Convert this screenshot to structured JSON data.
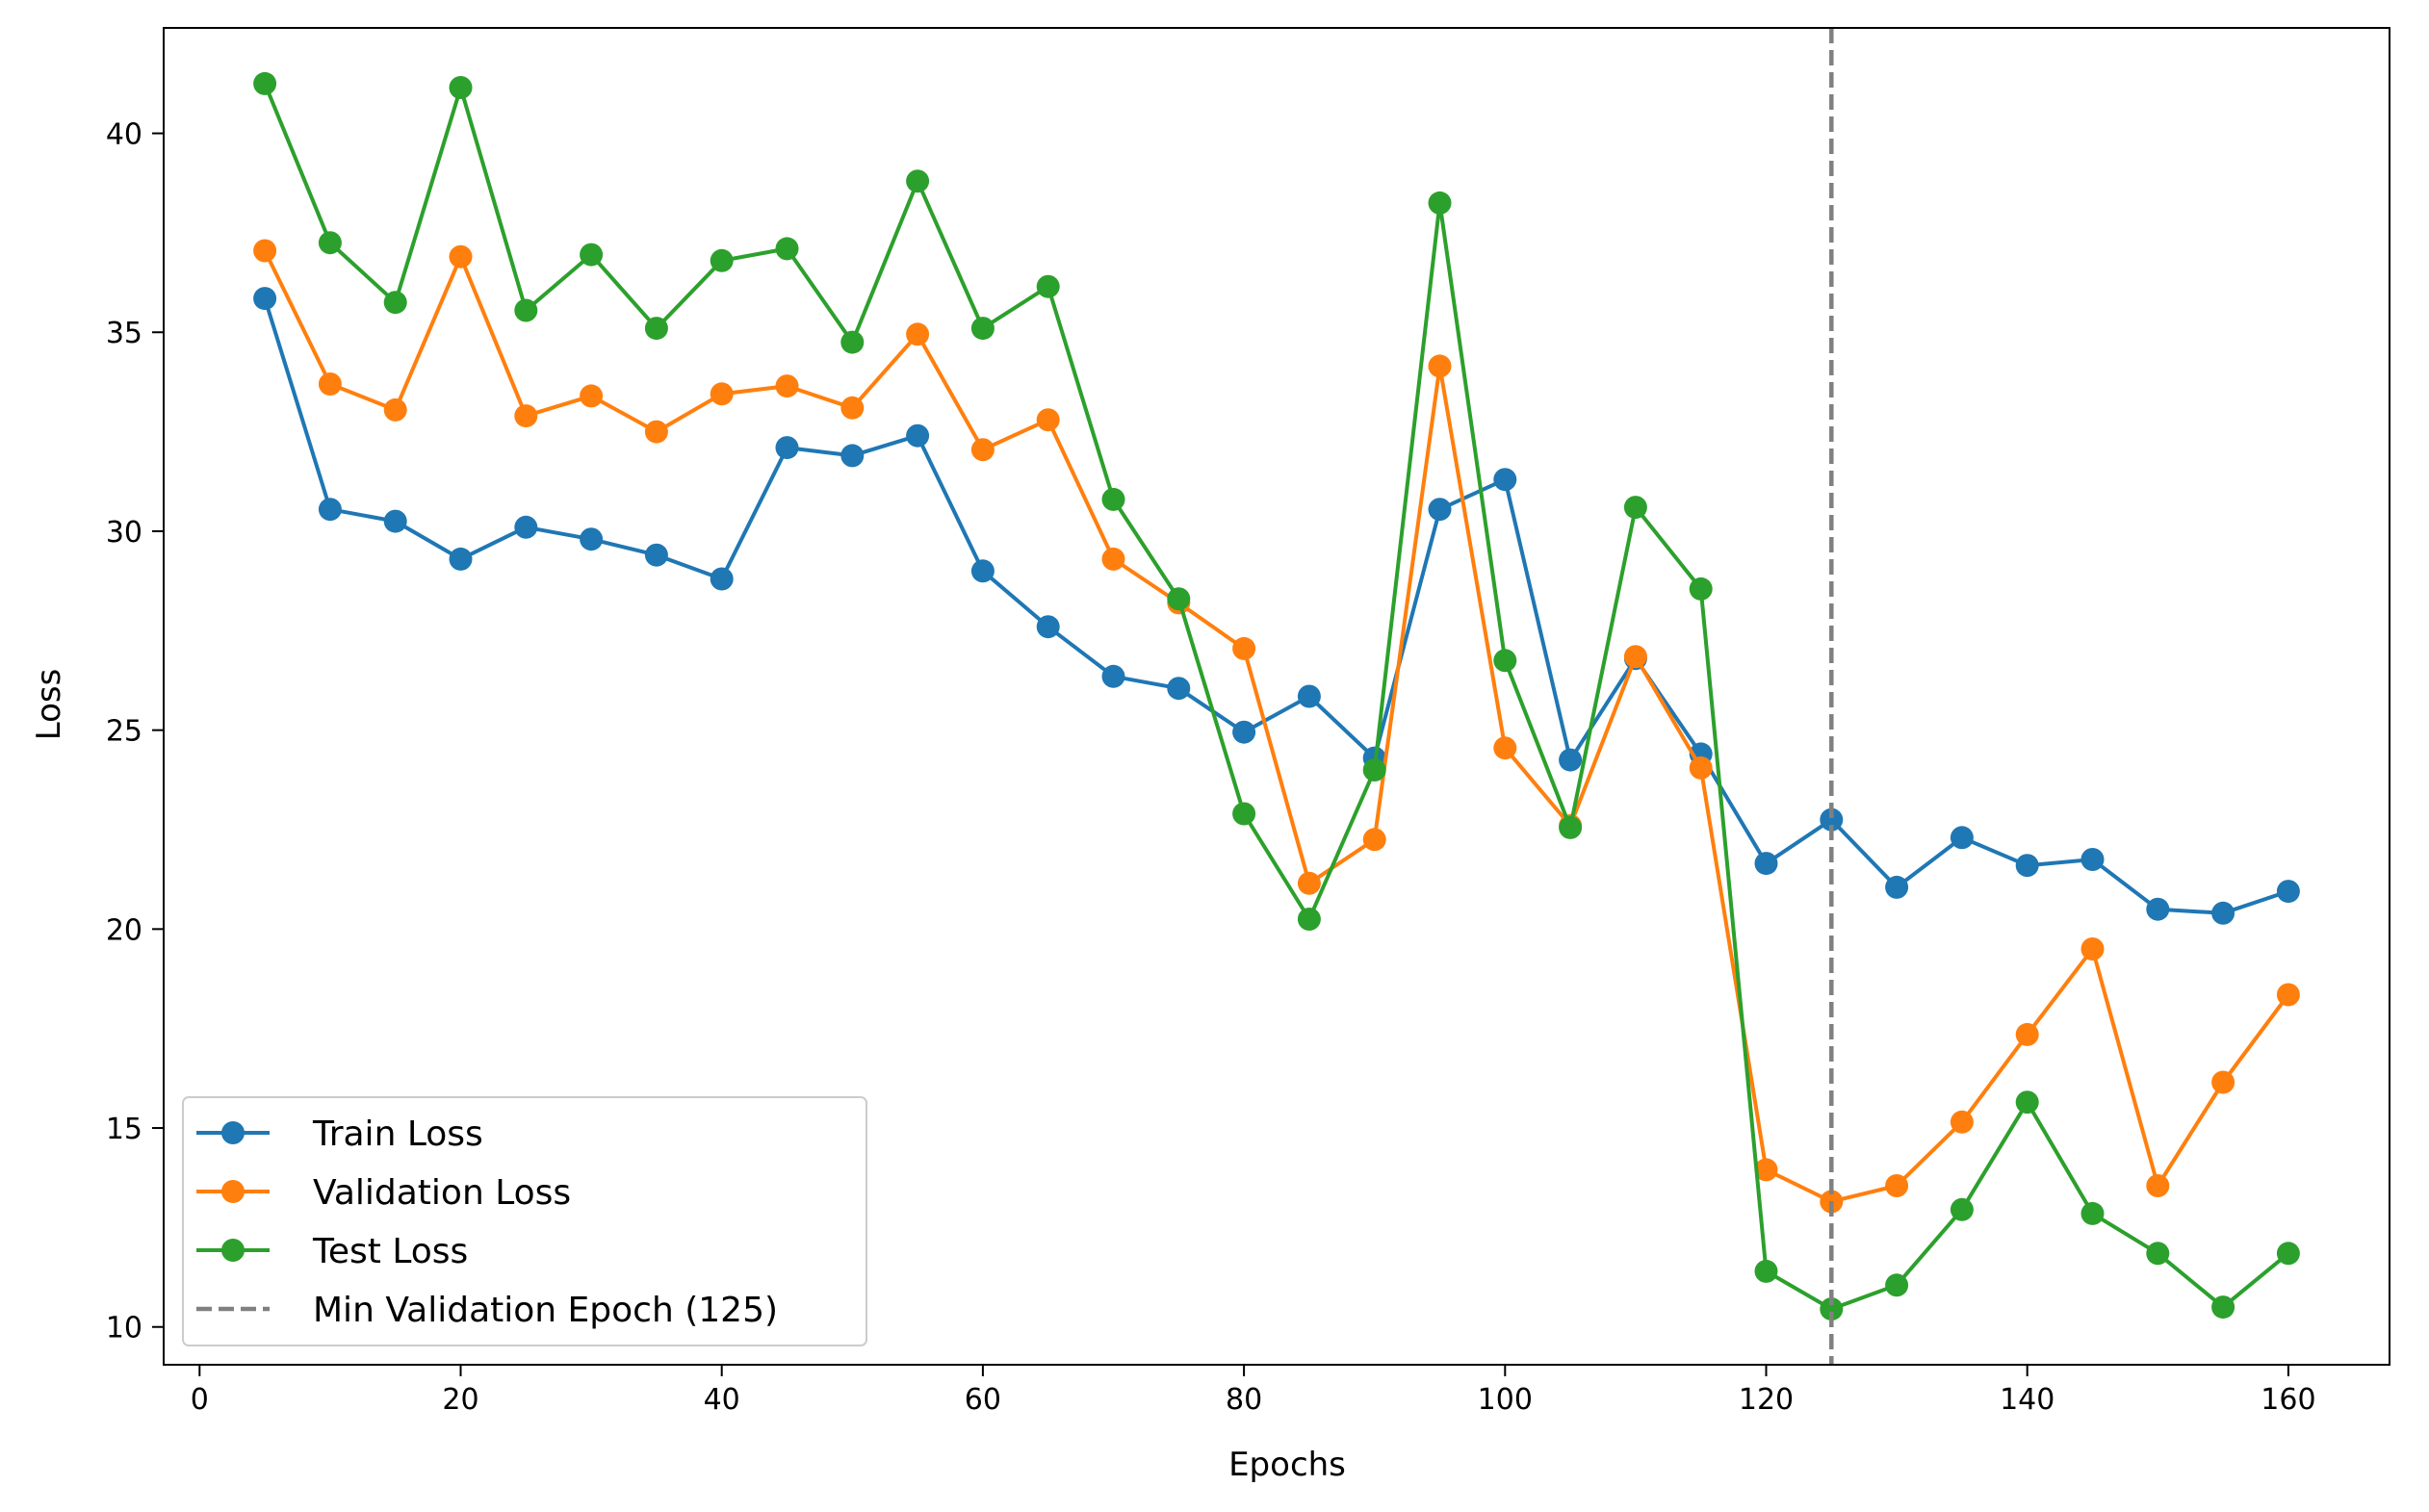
{
  "chart_data": {
    "type": "line",
    "title": "",
    "xlabel": "Epochs",
    "ylabel": "Loss",
    "xlim": [
      -2.75,
      167.75
    ],
    "ylim": [
      9.05,
      42.65
    ],
    "xticks": [
      0,
      20,
      40,
      60,
      80,
      100,
      120,
      140,
      160
    ],
    "yticks": [
      10,
      15,
      20,
      25,
      30,
      35,
      40
    ],
    "grid": false,
    "legend": "lower-left",
    "x": [
      5,
      10,
      15,
      20,
      25,
      30,
      35,
      40,
      45,
      50,
      55,
      60,
      65,
      70,
      75,
      80,
      85,
      90,
      95,
      100,
      105,
      110,
      115,
      120,
      125,
      130,
      135,
      140,
      145,
      150,
      155,
      160
    ],
    "series": [
      {
        "name": "Train Loss",
        "color": "#1f77b4",
        "values": [
          35.85,
          30.55,
          30.25,
          29.3,
          30.1,
          29.8,
          29.4,
          28.8,
          32.1,
          31.9,
          32.4,
          29.0,
          27.6,
          26.35,
          26.05,
          24.95,
          25.85,
          24.3,
          30.55,
          31.3,
          24.25,
          26.8,
          24.4,
          21.65,
          22.75,
          21.05,
          22.3,
          21.6,
          21.75,
          20.5,
          20.4,
          20.95
        ]
      },
      {
        "name": "Validation Loss",
        "color": "#ff7f0e",
        "values": [
          37.05,
          33.7,
          33.05,
          36.9,
          32.9,
          33.4,
          32.5,
          33.45,
          33.65,
          33.1,
          34.95,
          32.05,
          32.8,
          29.3,
          28.2,
          27.05,
          21.15,
          22.25,
          34.15,
          24.55,
          22.6,
          26.85,
          24.05,
          13.95,
          13.15,
          13.55,
          15.15,
          17.35,
          19.5,
          13.55,
          16.15,
          18.35
        ]
      },
      {
        "name": "Test Loss",
        "color": "#2ca02c",
        "values": [
          41.25,
          37.25,
          35.75,
          41.15,
          35.55,
          36.95,
          35.1,
          36.8,
          37.1,
          34.75,
          38.8,
          35.1,
          36.15,
          30.8,
          28.3,
          22.9,
          20.25,
          24.0,
          38.25,
          26.75,
          22.55,
          30.6,
          28.55,
          11.4,
          10.45,
          11.05,
          12.95,
          15.65,
          12.85,
          11.85,
          10.5,
          11.85
        ]
      }
    ],
    "vline": {
      "x": 125,
      "label": "Min Validation Epoch (125)",
      "color": "#808080",
      "style": "dashed"
    }
  }
}
